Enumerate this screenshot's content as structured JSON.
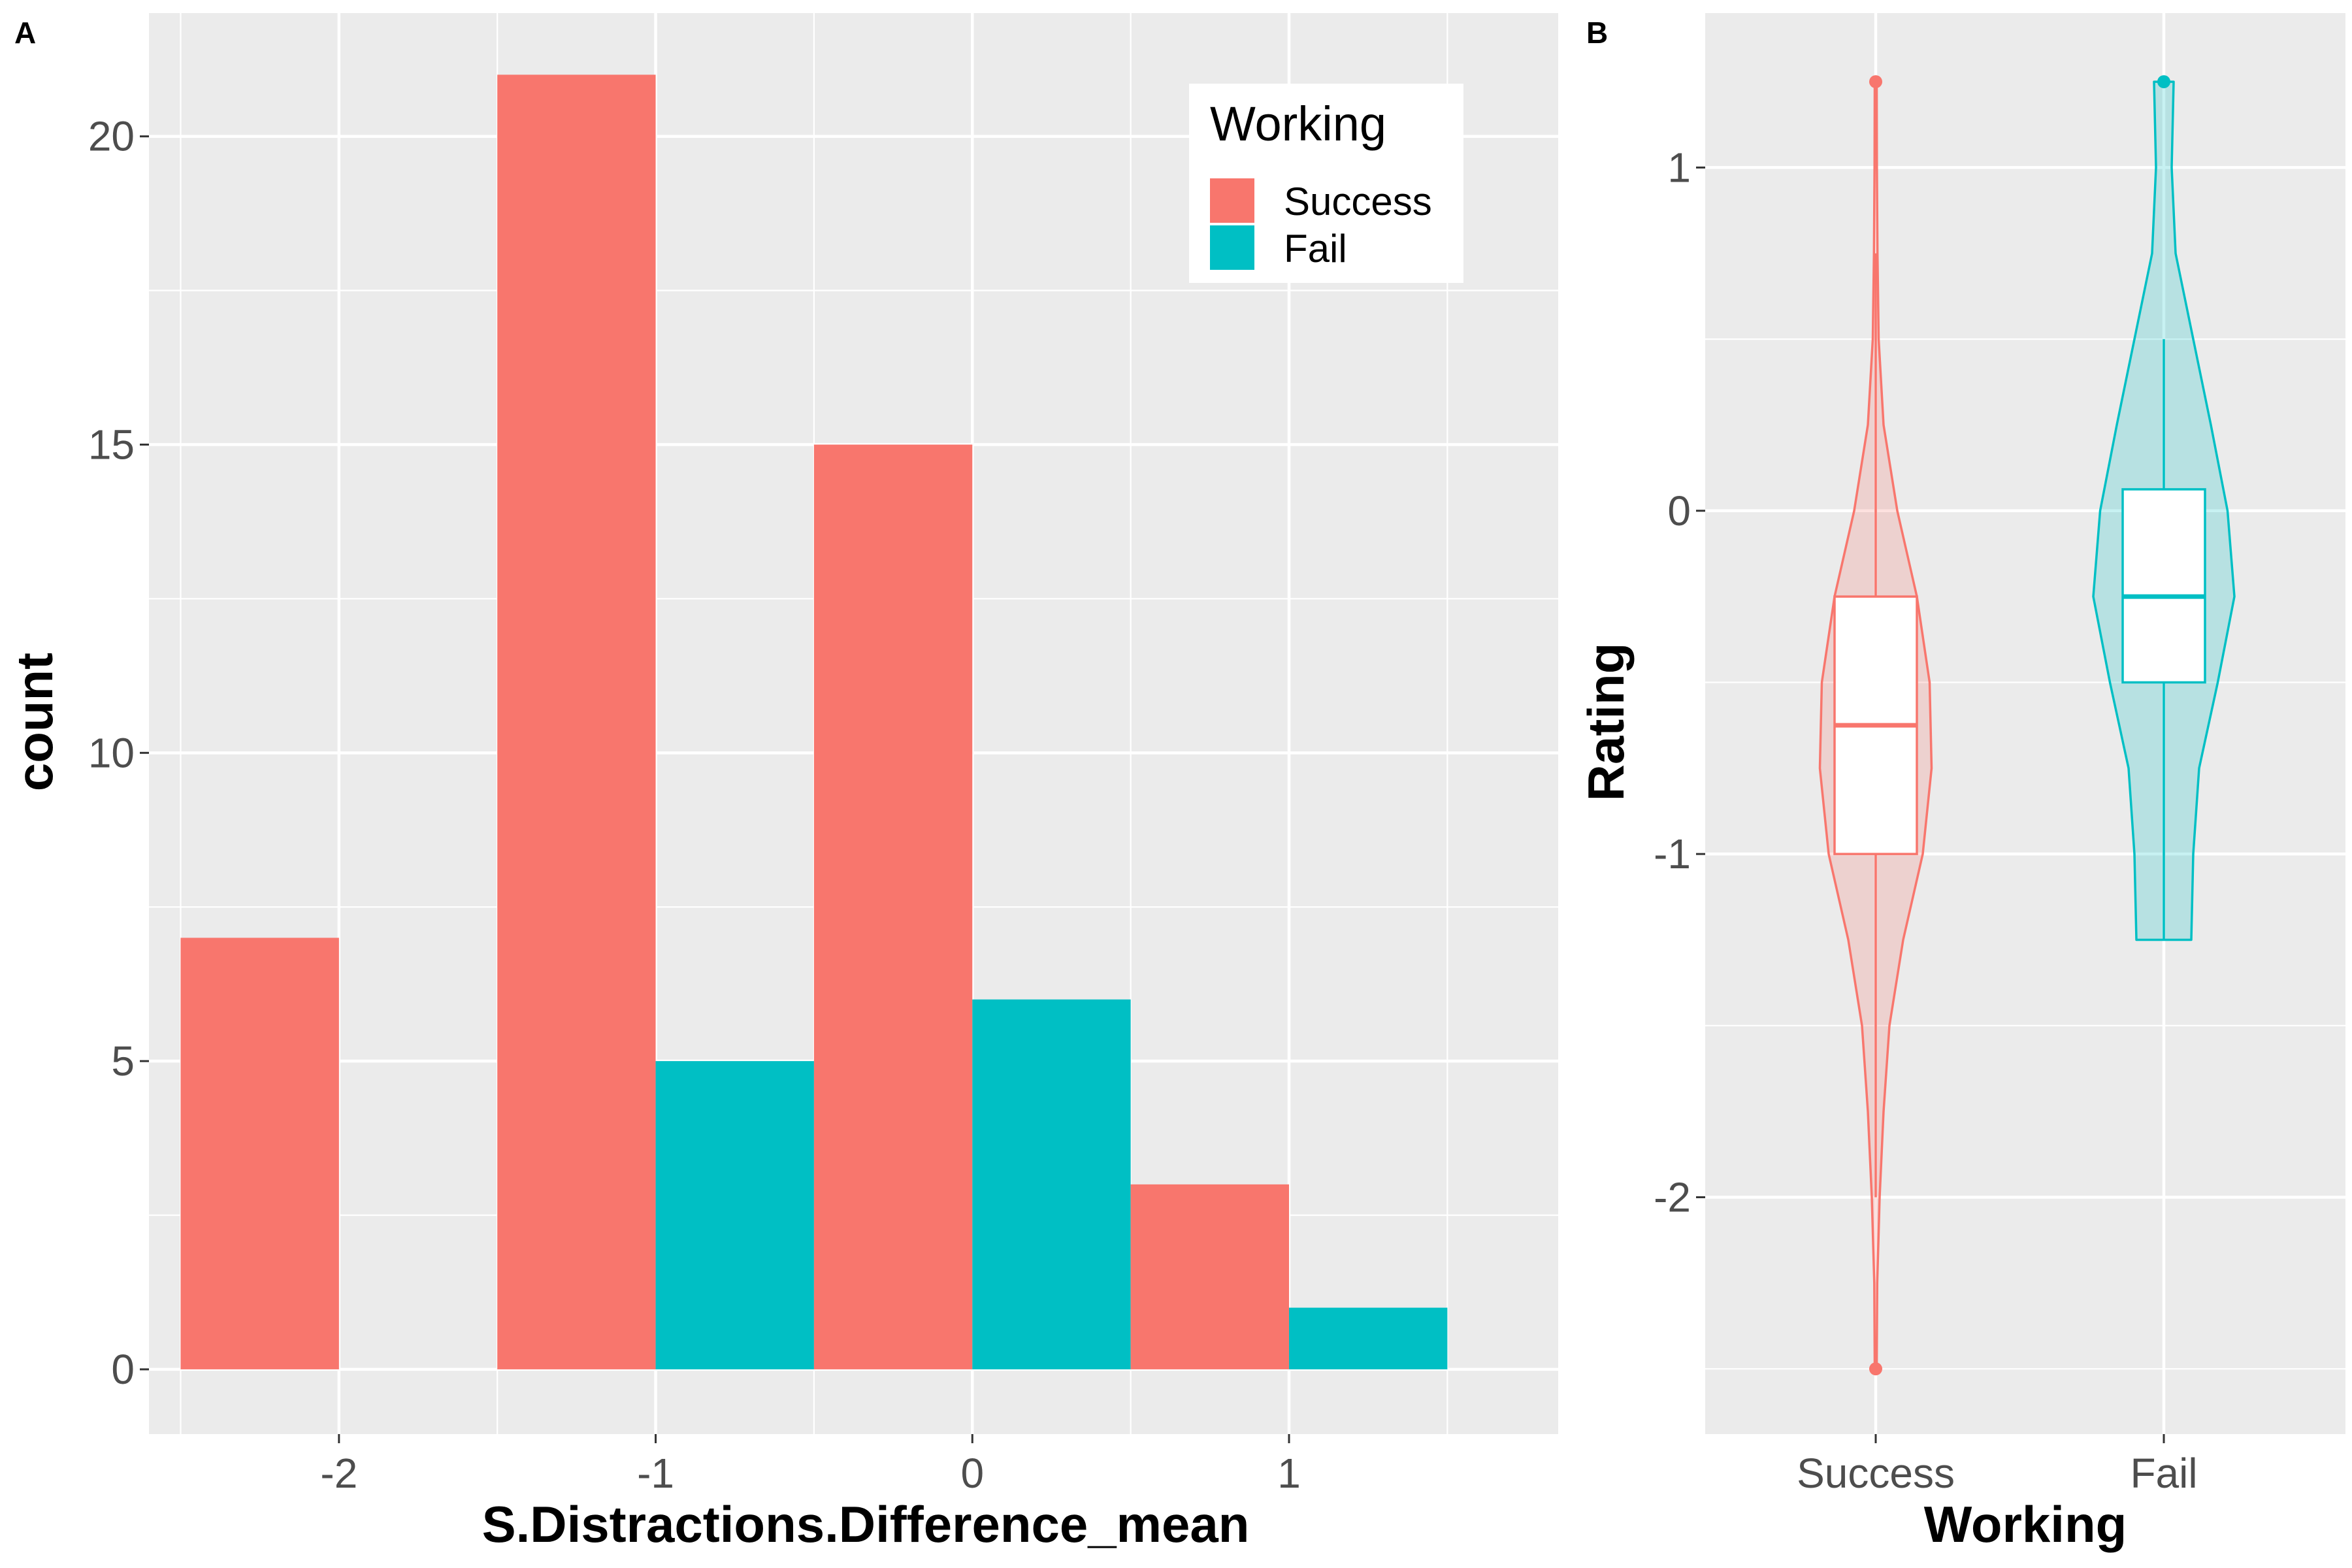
{
  "colors": {
    "success": "#F8766D",
    "fail": "#00BFC4",
    "panel_bg": "#EBEBEB",
    "grid": "#FFFFFF"
  },
  "panel_a_label": "A",
  "panel_b_label": "B",
  "chart_data": [
    {
      "type": "bar",
      "panel": "A",
      "xlabel": "S.Distractions.Difference_mean",
      "ylabel": "count",
      "xlim": [
        -2.6,
        1.85
      ],
      "ylim": [
        -1.05,
        22
      ],
      "x_ticks": [
        -2,
        -1,
        0,
        1
      ],
      "x_tick_labels": [
        "-2",
        "-1",
        "0",
        "1"
      ],
      "y_ticks": [
        0,
        5,
        10,
        15,
        20
      ],
      "y_tick_labels": [
        "0",
        "5",
        "10",
        "15",
        "20"
      ],
      "grid": true,
      "legend": {
        "title": "Working",
        "position": "top-right",
        "entries": [
          "Success",
          "Fail"
        ]
      },
      "bars": [
        {
          "group": "Success",
          "x0": -2.5,
          "x1": -2.0,
          "value": 7
        },
        {
          "group": "Success",
          "x0": -1.5,
          "x1": -1.0,
          "value": 21
        },
        {
          "group": "Fail",
          "x0": -1.0,
          "x1": -0.5,
          "value": 5
        },
        {
          "group": "Success",
          "x0": -0.5,
          "x1": 0.0,
          "value": 15
        },
        {
          "group": "Fail",
          "x0": 0.0,
          "x1": 0.5,
          "value": 6
        },
        {
          "group": "Success",
          "x0": 0.5,
          "x1": 1.0,
          "value": 3
        },
        {
          "group": "Fail",
          "x0": 1.0,
          "x1": 1.5,
          "value": 1
        }
      ]
    },
    {
      "type": "violin",
      "panel": "B",
      "xlabel": "Working",
      "ylabel": "Rating",
      "categories": [
        "Success",
        "Fail"
      ],
      "ylim": [
        -2.69,
        1.45
      ],
      "y_ticks": [
        -2,
        -1,
        0,
        1
      ],
      "y_tick_labels": [
        "-2",
        "-1",
        "0",
        "1"
      ],
      "grid": true,
      "groups": [
        {
          "name": "Success",
          "whisker_low": -2.0,
          "q1": -1.0,
          "median": -0.625,
          "q3": -0.25,
          "whisker_high": 0.75,
          "outliers": [
            1.25,
            -2.5
          ],
          "density": [
            [
              1.25,
              0.01
            ],
            [
              1.0,
              0.012
            ],
            [
              0.75,
              0.018
            ],
            [
              0.5,
              0.03
            ],
            [
              0.25,
              0.08
            ],
            [
              0.0,
              0.22
            ],
            [
              -0.25,
              0.42
            ],
            [
              -0.5,
              0.55
            ],
            [
              -0.75,
              0.57
            ],
            [
              -1.0,
              0.48
            ],
            [
              -1.25,
              0.28
            ],
            [
              -1.5,
              0.14
            ],
            [
              -1.75,
              0.08
            ],
            [
              -2.0,
              0.04
            ],
            [
              -2.25,
              0.015
            ],
            [
              -2.5,
              0.01
            ]
          ]
        },
        {
          "name": "Fail",
          "whisker_low": -1.25,
          "q1": -0.5,
          "median": -0.25,
          "q3": 0.0625,
          "whisker_high": 0.5,
          "outliers": [
            1.25
          ],
          "density": [
            [
              1.25,
              0.1
            ],
            [
              1.0,
              0.08
            ],
            [
              0.75,
              0.12
            ],
            [
              0.5,
              0.3
            ],
            [
              0.25,
              0.48
            ],
            [
              0.0,
              0.65
            ],
            [
              -0.25,
              0.72
            ],
            [
              -0.5,
              0.55
            ],
            [
              -0.75,
              0.36
            ],
            [
              -1.0,
              0.3
            ],
            [
              -1.25,
              0.28
            ]
          ]
        }
      ]
    }
  ]
}
